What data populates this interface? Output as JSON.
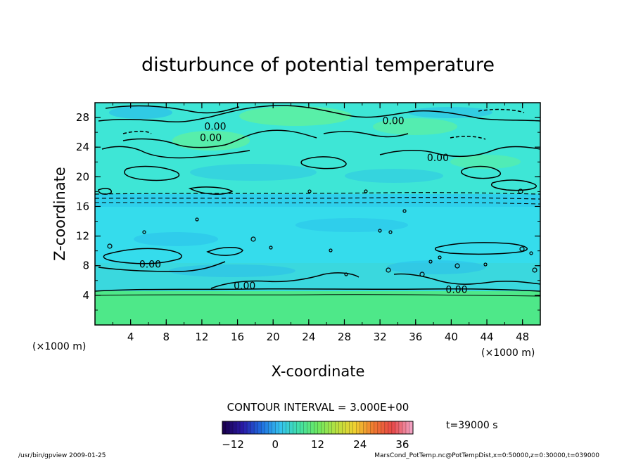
{
  "chart_data": {
    "type": "heatmap",
    "title": "disturbunce of potential temperature",
    "xlabel": "X-coordinate",
    "ylabel": "Z-coordinate",
    "x_unit": "(×1000 m)",
    "y_unit": "(×1000 m)",
    "xlim": [
      0,
      50
    ],
    "ylim": [
      0,
      30
    ],
    "x_ticks": [
      4,
      8,
      12,
      16,
      20,
      24,
      28,
      32,
      36,
      40,
      44,
      48
    ],
    "y_ticks": [
      4,
      8,
      12,
      16,
      20,
      24,
      28
    ],
    "contour_interval_text": "CONTOUR INTERVAL = 3.000E+00",
    "contour_labels": [
      {
        "text": "0.00",
        "x": 13,
        "z": 25.3
      },
      {
        "text": "0.00",
        "x": 13.5,
        "z": 26.8
      },
      {
        "text": "0.00",
        "x": 33.5,
        "z": 27.6
      },
      {
        "text": "0.00",
        "x": 38.5,
        "z": 22.6
      },
      {
        "text": "0.00",
        "x": 6.2,
        "z": 8.2
      },
      {
        "text": "0.00",
        "x": 16.8,
        "z": 5.3
      },
      {
        "text": "0.00",
        "x": 40.6,
        "z": 4.8
      }
    ],
    "colorbar": {
      "range": [
        -15,
        39
      ],
      "ticks": [
        -12,
        0,
        12,
        24,
        36
      ],
      "colors": [
        "#1a0050",
        "#2a1aa8",
        "#1f6fe0",
        "#35c3f0",
        "#40e0a8",
        "#6ce860",
        "#b8e040",
        "#f0d030",
        "#f07830",
        "#e84848",
        "#f2a0c0"
      ]
    },
    "time_label": "t=39000 s",
    "field_colors": {
      "upper": "#3ee6d6",
      "band": "#2ed0ec",
      "mid": "#35dcec",
      "lower": "#3ad8de",
      "bottom": "#4ee889",
      "patch_green": "#5ef0a0",
      "patch_blue": "#28b8ec"
    }
  },
  "footer": {
    "left": "/usr/bin/gpview   2009-01-25",
    "right": "MarsCond_PotTemp.nc@PotTempDist,x=0:50000,z=0:30000,t=039000"
  }
}
